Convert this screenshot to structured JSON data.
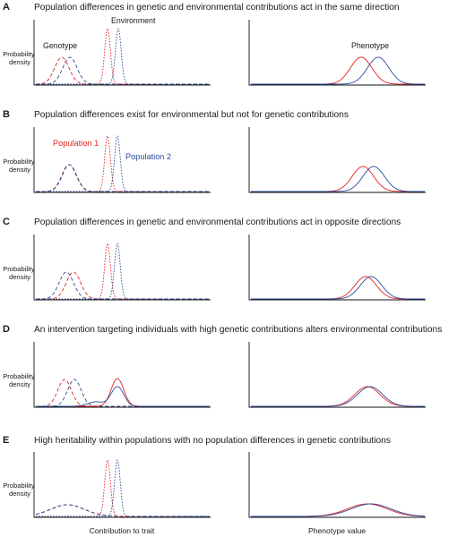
{
  "colors": {
    "population_1": "#e32222",
    "population_2": "#2b4c9b",
    "axis": "#111111"
  },
  "y_axis_label": [
    "Probability",
    "density"
  ],
  "x_axis_labels": {
    "left": "Contribution to trait",
    "right": "Phenotype value"
  },
  "legend": {
    "population_1": "Population 1",
    "population_2": "Population 2"
  },
  "annotations": {
    "genotype": "Genotype",
    "environment": "Environment",
    "phenotype": "Phenotype"
  },
  "panels": [
    {
      "label": "A",
      "title": "Population differences in genetic and environmental contributions act in the same direction"
    },
    {
      "label": "B",
      "title": "Population differences exist for environmental but not for genetic contributions"
    },
    {
      "label": "C",
      "title": "Population differences in genetic and environmental contributions act in opposite directions"
    },
    {
      "label": "D",
      "title": "An intervention targeting individuals with high genetic contributions alters environmental contributions"
    },
    {
      "label": "E",
      "title": "High heritability within populations with no population differences in genetic contributions"
    }
  ]
}
